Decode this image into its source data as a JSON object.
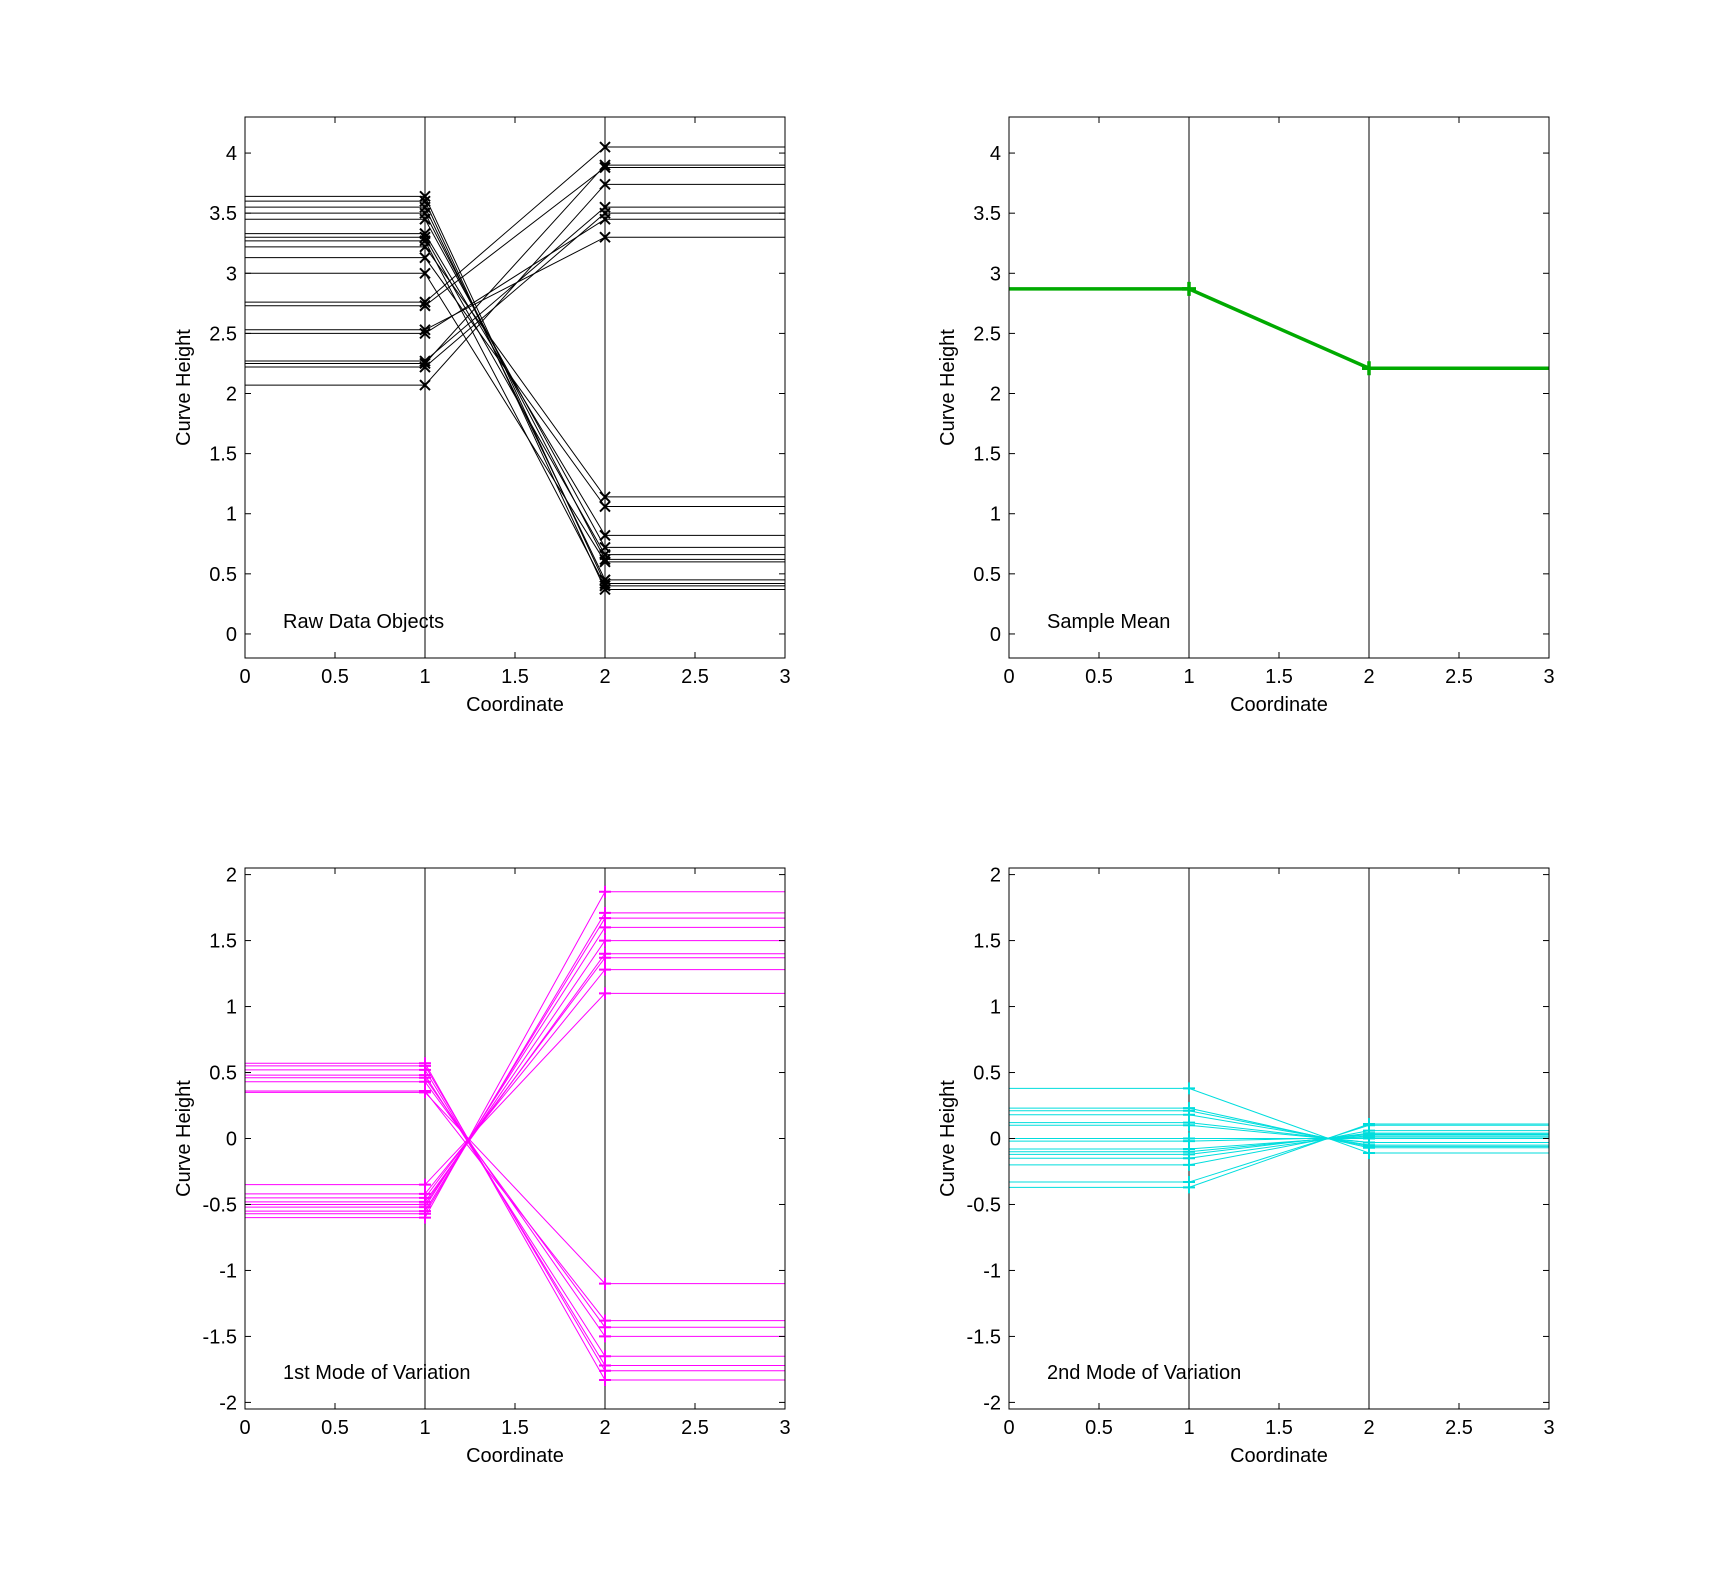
{
  "chart_data": [
    {
      "type": "line",
      "annotation": "Raw Data Objects",
      "xlabel": "Coordinate",
      "ylabel": "Curve Height",
      "xlim": [
        0,
        3
      ],
      "ylim": [
        -0.2,
        4.3
      ],
      "xticks": [
        0,
        0.5,
        1,
        1.5,
        2,
        2.5,
        3
      ],
      "xtick_labels": [
        "0",
        "0.5",
        "1",
        "1.5",
        "2",
        "2.5",
        "3"
      ],
      "yticks": [
        0,
        0.5,
        1,
        1.5,
        2,
        2.5,
        3,
        3.5,
        4
      ],
      "ytick_labels": [
        "0",
        "0.5",
        "1",
        "1.5",
        "2",
        "2.5",
        "3",
        "3.5",
        "4"
      ],
      "vlines": [
        1,
        2
      ],
      "color": "#000000",
      "marker": "x",
      "line_width": 1,
      "series": [
        {
          "values": [
            3.64,
            0.42
          ]
        },
        {
          "values": [
            3.6,
            0.37
          ]
        },
        {
          "values": [
            3.55,
            0.45
          ]
        },
        {
          "values": [
            3.5,
            0.62
          ]
        },
        {
          "values": [
            3.45,
            0.72
          ]
        },
        {
          "values": [
            3.33,
            0.82
          ]
        },
        {
          "values": [
            3.3,
            0.66
          ]
        },
        {
          "values": [
            3.27,
            0.4
          ]
        },
        {
          "values": [
            3.22,
            1.14
          ]
        },
        {
          "values": [
            3.13,
            1.06
          ]
        },
        {
          "values": [
            3.0,
            0.6
          ]
        },
        {
          "values": [
            2.76,
            4.05
          ]
        },
        {
          "values": [
            2.73,
            3.88
          ]
        },
        {
          "values": [
            2.53,
            3.3
          ]
        },
        {
          "values": [
            2.5,
            3.45
          ]
        },
        {
          "values": [
            2.27,
            3.55
          ]
        },
        {
          "values": [
            2.25,
            3.9
          ]
        },
        {
          "values": [
            2.22,
            3.5
          ]
        },
        {
          "values": [
            2.07,
            3.74
          ]
        }
      ]
    },
    {
      "type": "line",
      "annotation": "Sample Mean",
      "xlabel": "Coordinate",
      "ylabel": "Curve Height",
      "xlim": [
        0,
        3
      ],
      "ylim": [
        -0.2,
        4.3
      ],
      "xticks": [
        0,
        0.5,
        1,
        1.5,
        2,
        2.5,
        3
      ],
      "xtick_labels": [
        "0",
        "0.5",
        "1",
        "1.5",
        "2",
        "2.5",
        "3"
      ],
      "yticks": [
        0,
        0.5,
        1,
        1.5,
        2,
        2.5,
        3,
        3.5,
        4
      ],
      "ytick_labels": [
        "0",
        "0.5",
        "1",
        "1.5",
        "2",
        "2.5",
        "3",
        "3.5",
        "4"
      ],
      "vlines": [
        1,
        2
      ],
      "color": "#00aa00",
      "marker": "+",
      "line_width": 3.5,
      "series": [
        {
          "values": [
            2.87,
            2.21
          ]
        }
      ]
    },
    {
      "type": "line",
      "annotation": "1st Mode of Variation",
      "xlabel": "Coordinate",
      "ylabel": "Curve Height",
      "xlim": [
        0,
        3
      ],
      "ylim": [
        -2.05,
        2.05
      ],
      "xticks": [
        0,
        0.5,
        1,
        1.5,
        2,
        2.5,
        3
      ],
      "xtick_labels": [
        "0",
        "0.5",
        "1",
        "1.5",
        "2",
        "2.5",
        "3"
      ],
      "yticks": [
        -2,
        -1.5,
        -1,
        -0.5,
        0,
        0.5,
        1,
        1.5,
        2
      ],
      "ytick_labels": [
        "-2",
        "-1.5",
        "-1",
        "-0.5",
        "0",
        "0.5",
        "1",
        "1.5",
        "2"
      ],
      "vlines": [
        1,
        2
      ],
      "color": "#ff00ff",
      "marker": "+",
      "line_width": 1,
      "series": [
        {
          "values": [
            0.57,
            -1.83
          ]
        },
        {
          "values": [
            0.55,
            -1.76
          ]
        },
        {
          "values": [
            0.52,
            -1.72
          ]
        },
        {
          "values": [
            0.48,
            -1.65
          ]
        },
        {
          "values": [
            0.46,
            -1.5
          ]
        },
        {
          "values": [
            0.43,
            -1.43
          ]
        },
        {
          "values": [
            0.36,
            -1.38
          ]
        },
        {
          "values": [
            0.35,
            -1.1
          ]
        },
        {
          "values": [
            -0.35,
            1.1
          ]
        },
        {
          "values": [
            -0.42,
            1.28
          ]
        },
        {
          "values": [
            -0.45,
            1.37
          ]
        },
        {
          "values": [
            -0.48,
            1.4
          ]
        },
        {
          "values": [
            -0.5,
            1.5
          ]
        },
        {
          "values": [
            -0.52,
            1.6
          ]
        },
        {
          "values": [
            -0.55,
            1.67
          ]
        },
        {
          "values": [
            -0.57,
            1.71
          ]
        },
        {
          "values": [
            -0.6,
            1.87
          ]
        }
      ]
    },
    {
      "type": "line",
      "annotation": "2nd Mode of Variation",
      "xlabel": "Coordinate",
      "ylabel": "Curve Height",
      "xlim": [
        0,
        3
      ],
      "ylim": [
        -2.05,
        2.05
      ],
      "xticks": [
        0,
        0.5,
        1,
        1.5,
        2,
        2.5,
        3
      ],
      "xtick_labels": [
        "0",
        "0.5",
        "1",
        "1.5",
        "2",
        "2.5",
        "3"
      ],
      "yticks": [
        -2,
        -1.5,
        -1,
        -0.5,
        0,
        0.5,
        1,
        1.5,
        2
      ],
      "ytick_labels": [
        "-2",
        "-1.5",
        "-1",
        "-0.5",
        "0",
        "0.5",
        "1",
        "1.5",
        "2"
      ],
      "vlines": [
        1,
        2
      ],
      "color": "#00dddd",
      "marker": "+",
      "line_width": 1,
      "series": [
        {
          "values": [
            0.38,
            -0.11
          ]
        },
        {
          "values": [
            0.23,
            -0.07
          ]
        },
        {
          "values": [
            0.21,
            -0.06
          ]
        },
        {
          "values": [
            0.18,
            -0.05
          ]
        },
        {
          "values": [
            0.12,
            -0.03
          ]
        },
        {
          "values": [
            0.1,
            -0.03
          ]
        },
        {
          "values": [
            0.0,
            0.0
          ]
        },
        {
          "values": [
            -0.02,
            0.01
          ]
        },
        {
          "values": [
            -0.08,
            0.02
          ]
        },
        {
          "values": [
            -0.1,
            0.03
          ]
        },
        {
          "values": [
            -0.12,
            0.04
          ]
        },
        {
          "values": [
            -0.15,
            0.04
          ]
        },
        {
          "values": [
            -0.2,
            0.06
          ]
        },
        {
          "values": [
            -0.33,
            0.1
          ]
        },
        {
          "values": [
            -0.37,
            0.11
          ]
        }
      ]
    }
  ]
}
